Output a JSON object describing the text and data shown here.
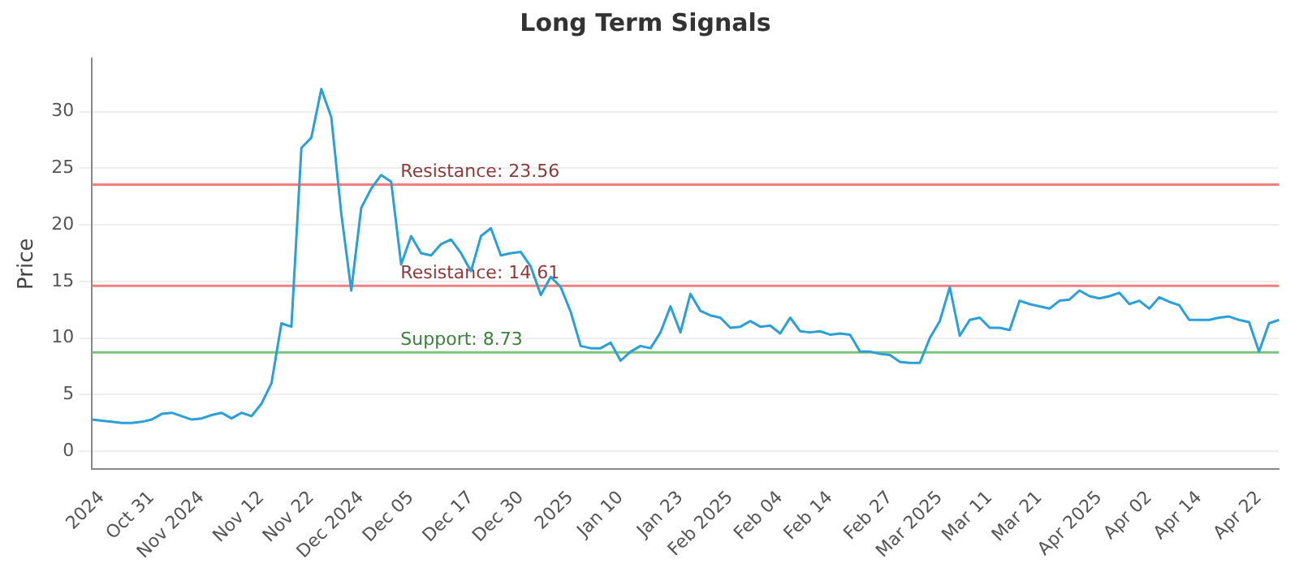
{
  "chart_data": {
    "type": "line",
    "title": "Long Term Signals",
    "ylabel": "Price",
    "categories": [
      null,
      "2024",
      null,
      null,
      null,
      null,
      "Oct 31",
      null,
      null,
      null,
      null,
      "Nov 2024",
      null,
      null,
      null,
      null,
      null,
      "Nov 12",
      null,
      null,
      null,
      null,
      "Nov 22",
      null,
      null,
      null,
      null,
      "Dec 2024",
      null,
      null,
      null,
      null,
      "Dec 05",
      null,
      null,
      null,
      null,
      null,
      "Dec 17",
      null,
      null,
      null,
      null,
      "Dec 30",
      null,
      null,
      null,
      null,
      "2025",
      null,
      null,
      null,
      null,
      "Jan 10",
      null,
      null,
      null,
      null,
      null,
      "Jan 23",
      null,
      null,
      null,
      null,
      "Feb 2025",
      null,
      null,
      null,
      null,
      "Feb 04",
      null,
      null,
      null,
      null,
      "Feb 14",
      null,
      null,
      null,
      null,
      null,
      "Feb 27",
      null,
      null,
      null,
      null,
      "Mar 2025",
      null,
      null,
      null,
      null,
      "Mar 11",
      null,
      null,
      null,
      null,
      "Mar 21",
      null,
      null,
      null,
      null,
      null,
      "Apr 2025",
      null,
      null,
      null,
      null,
      "Apr 02",
      null,
      null,
      null,
      null,
      "Apr 14",
      null,
      null,
      null,
      null,
      null,
      "Apr 22",
      null,
      null
    ],
    "series": [
      {
        "color": "#2a9fd8",
        "values": [
          2.8,
          2.7,
          2.6,
          2.5,
          2.5,
          2.6,
          2.8,
          3.3,
          3.4,
          3.1,
          2.8,
          2.9,
          3.2,
          3.4,
          2.9,
          3.4,
          3.1,
          4.2,
          6,
          11.3,
          11,
          26.8,
          27.7,
          32,
          29.5,
          21,
          14.2,
          21.5,
          23.2,
          24.4,
          23.8,
          16.5,
          19,
          17.5,
          17.3,
          18.3,
          18.7,
          17.5,
          15.9,
          19,
          19.7,
          17.3,
          17.5,
          17.6,
          16.3,
          13.8,
          15.4,
          14.5,
          12.3,
          9.3,
          9.1,
          9.1,
          9.6,
          8,
          8.8,
          9.3,
          9.1,
          10.5,
          12.8,
          10.5,
          13.9,
          12.4,
          12,
          11.8,
          10.9,
          11,
          11.5,
          11,
          11.1,
          10.4,
          11.8,
          10.6,
          10.5,
          10.6,
          10.3,
          10.4,
          10.3,
          8.8,
          8.8,
          8.6,
          8.5,
          7.9,
          7.8,
          7.8,
          10,
          11.5,
          14.5,
          10.2,
          11.6,
          11.8,
          10.9,
          10.9,
          10.7,
          13.3,
          13,
          12.8,
          12.6,
          13.3,
          13.4,
          14.2,
          13.7,
          13.5,
          13.7,
          14,
          13,
          13.3,
          12.6,
          13.6,
          13.2,
          12.9,
          11.6,
          11.6,
          11.6,
          11.8,
          11.9,
          11.6,
          11.4,
          8.8,
          11.3,
          11.6
        ]
      }
    ],
    "ylim": [
      -1.6,
      34.7
    ],
    "yticks": [
      0,
      5,
      10,
      15,
      20,
      25,
      30
    ],
    "grid": "y",
    "legend": false,
    "marker": "none",
    "line_style": "solid",
    "ref_lines": [
      {
        "axis": "y",
        "value": 23.56,
        "label": "Resistance: 23.56",
        "color": "#f08080"
      },
      {
        "axis": "y",
        "value": 14.61,
        "label": "Resistance: 14.61",
        "color": "#f08080"
      },
      {
        "axis": "y",
        "value": 8.73,
        "label": "Support: 8.73",
        "color": "#7cc47c"
      }
    ]
  }
}
